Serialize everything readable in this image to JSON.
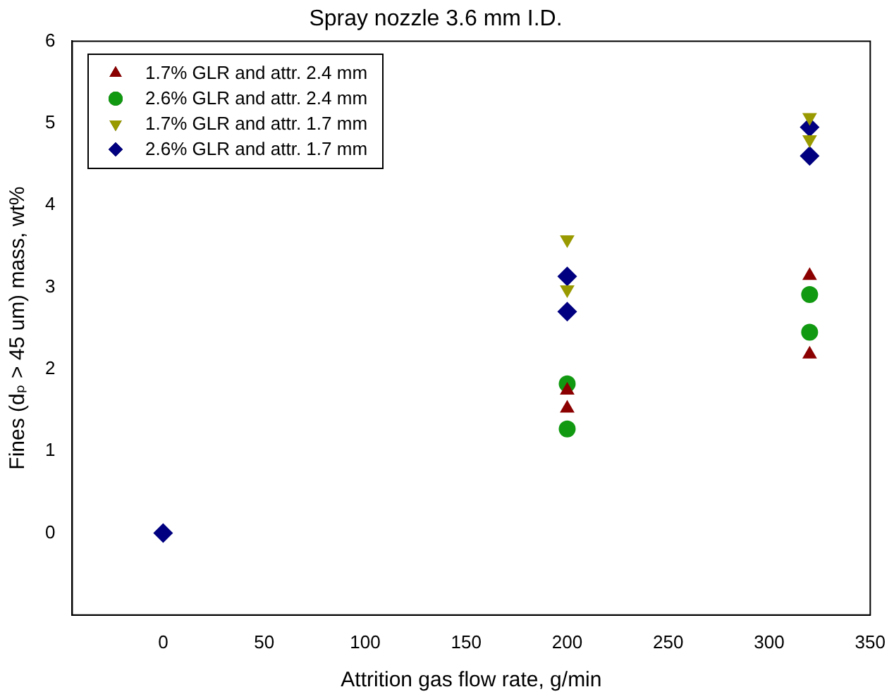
{
  "chart_data": {
    "type": "scatter",
    "title": "Spray nozzle 3.6 mm I.D.",
    "xlabel": "Attrition gas flow rate, g/min",
    "ylabel": "Fines (dₚ > 45 um) mass, wt%",
    "xlim": [
      -45,
      350
    ],
    "xticks": [
      0,
      50,
      100,
      150,
      200,
      250,
      300,
      350
    ],
    "ylim": [
      -1,
      6
    ],
    "yticks": [
      0,
      1,
      2,
      3,
      4,
      5,
      6
    ],
    "grid": false,
    "legend": "top left",
    "series": [
      {
        "name": "1.7% GLR and attr. 2.4 mm",
        "color": "#8b0000",
        "marker": "triangle",
        "x": [
          200,
          200,
          320,
          320
        ],
        "values": [
          1.74,
          1.52,
          3.14,
          2.18
        ]
      },
      {
        "name": "2.6% GLR and attr. 2.4 mm",
        "color": "#119911",
        "marker": "circle",
        "x": [
          200,
          200,
          320,
          320
        ],
        "values": [
          1.82,
          1.27,
          2.91,
          2.45
        ]
      },
      {
        "name": "1.7% GLR and attr. 1.7 mm",
        "color": "#999900",
        "marker": "triangle-down",
        "x": [
          200,
          200,
          320,
          320
        ],
        "values": [
          3.58,
          2.97,
          5.07,
          4.8
        ]
      },
      {
        "name": "2.6% GLR and attr. 1.7 mm",
        "color": "#000080",
        "marker": "diamond",
        "x": [
          0,
          200,
          200,
          320,
          320
        ],
        "values": [
          0,
          3.13,
          2.7,
          4.95,
          4.6
        ]
      }
    ]
  }
}
